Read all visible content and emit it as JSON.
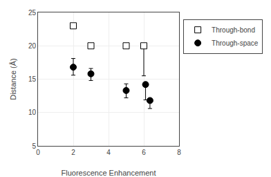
{
  "chart_data": {
    "type": "scatter",
    "xlabel": "Fluorescence Enhancement",
    "ylabel": "Distance (Å)",
    "xlim": [
      0,
      8
    ],
    "ylim": [
      5,
      25
    ],
    "xticks": [
      0,
      2,
      4,
      6,
      8
    ],
    "yticks": [
      5,
      10,
      15,
      20,
      25
    ],
    "grid": true,
    "legend": "right",
    "series": [
      {
        "name": "Through-bond",
        "color": "black",
        "marker": "square-open",
        "x": [
          2,
          3,
          5,
          6
        ],
        "values": [
          23,
          20,
          20,
          20
        ],
        "yerr_low": [
          0,
          0,
          0,
          4.5
        ],
        "yerr_high": [
          0,
          0,
          0,
          0
        ]
      },
      {
        "name": "Through-space",
        "color": "black",
        "marker": "circle",
        "x": [
          2,
          3,
          5,
          6.1,
          6.35
        ],
        "values": [
          16.8,
          15.8,
          13.3,
          14.2,
          11.8
        ],
        "yerr_low": [
          1.2,
          1.0,
          1.1,
          2.3,
          1.2
        ],
        "yerr_high": [
          1.3,
          0.8,
          1.0,
          0.3,
          0.3
        ]
      }
    ]
  }
}
